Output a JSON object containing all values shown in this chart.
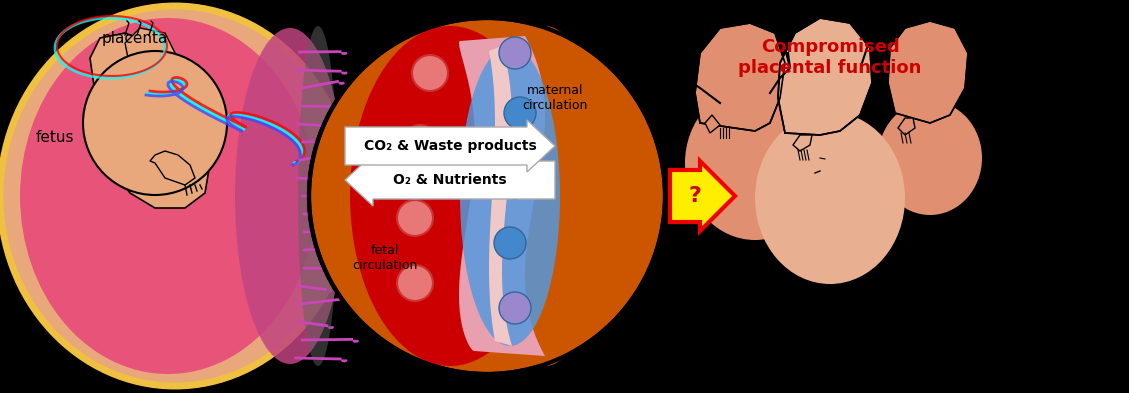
{
  "bg_color": "#000000",
  "fig_width": 11.29,
  "fig_height": 3.93,
  "dpi": 100,
  "skin_color": "#e8a87c",
  "skin_light": "#e8b090",
  "skin_medium": "#e09070",
  "pink_placenta": "#e8537a",
  "yellow_border": "#f0c040",
  "magenta": "#cc44bb",
  "orange_bg": "#cc5500",
  "red_fetal": "#cc0000",
  "pink_mem1": "#e8a0b0",
  "pink_mem2": "#f0c8c8",
  "blue_maternal": "#5599dd",
  "blue_cell": "#4488cc",
  "purple_cell": "#9988cc",
  "red_cell": "#e87878",
  "title_text": "Compromised\nplacental function",
  "title_color": "#cc0000",
  "title_fontsize": 13,
  "label_fetus": "fetus",
  "label_placenta": "placenta",
  "label_fetal": "fetal\ncirculation",
  "label_maternal": "maternal\ncirculation",
  "label_o2": "O₂ & Nutrients",
  "label_co2": "CO₂ & Waste products",
  "label_q": "?"
}
